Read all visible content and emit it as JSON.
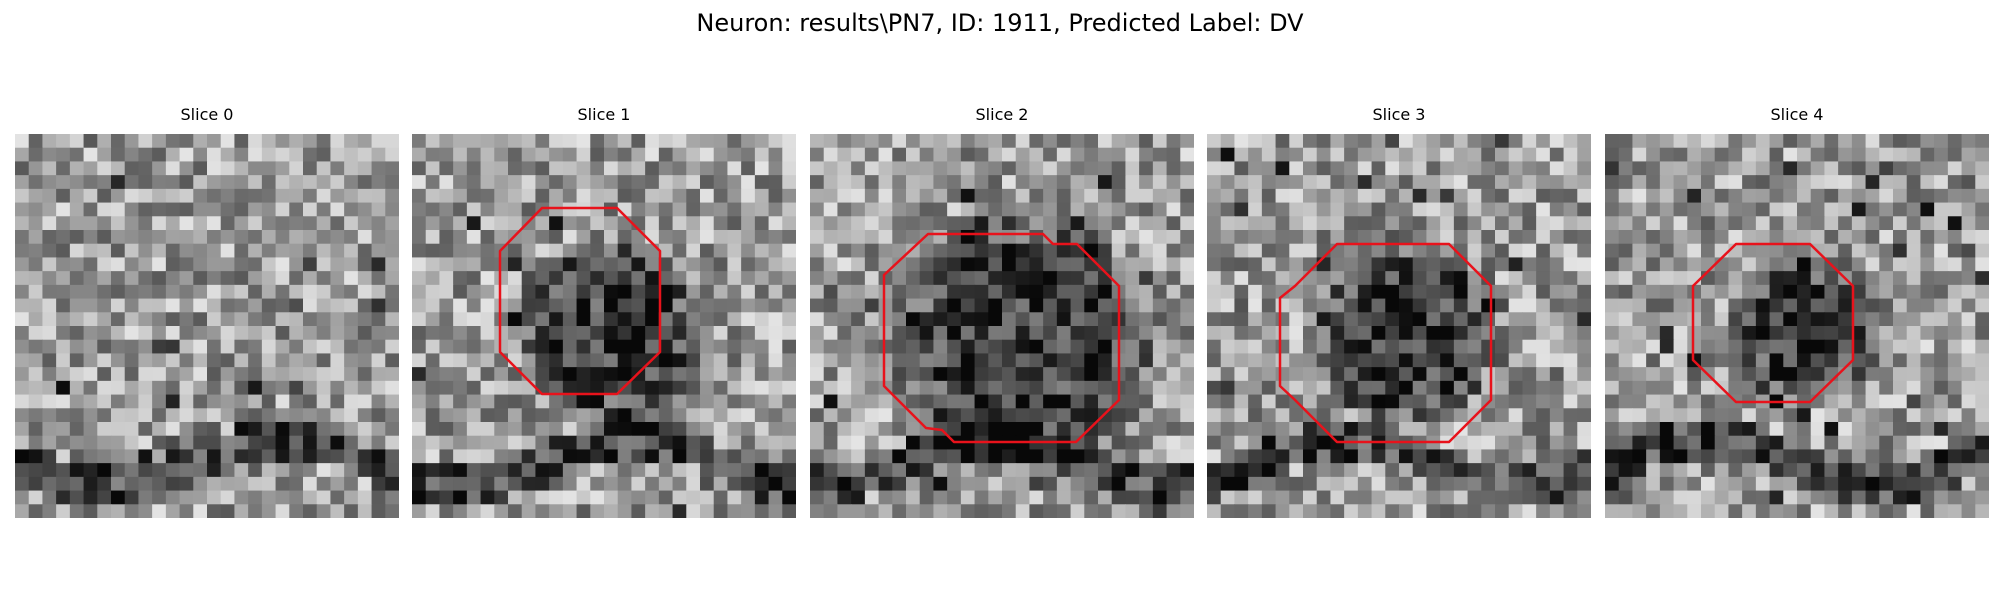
{
  "figure": {
    "title": "Neuron: results\\PN7, ID: 1911, Predicted Label: DV"
  },
  "colors": {
    "contour": "#e8121b",
    "background": "#ffffff"
  },
  "colormap": "grayscale",
  "panels": [
    {
      "title": "Slice 0",
      "has_contour": false,
      "dark_region": "none"
    },
    {
      "title": "Slice 1",
      "has_contour": true,
      "dark_region": "medium"
    },
    {
      "title": "Slice 2",
      "has_contour": true,
      "dark_region": "large"
    },
    {
      "title": "Slice 3",
      "has_contour": true,
      "dark_region": "medium"
    },
    {
      "title": "Slice 4",
      "has_contour": true,
      "dark_region": "small"
    }
  ]
}
